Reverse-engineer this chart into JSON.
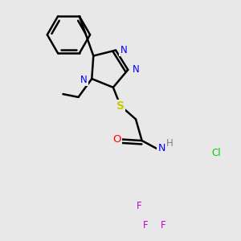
{
  "background_color": "#e8e8e8",
  "atom_colors": {
    "N": "#0000ff",
    "S": "#cccc00",
    "O": "#ff0000",
    "Cl": "#00cc00",
    "F": "#cc00cc",
    "C": "#000000",
    "H": "#808080"
  },
  "bond_color": "#000000",
  "figsize": [
    3.0,
    3.0
  ],
  "dpi": 100
}
